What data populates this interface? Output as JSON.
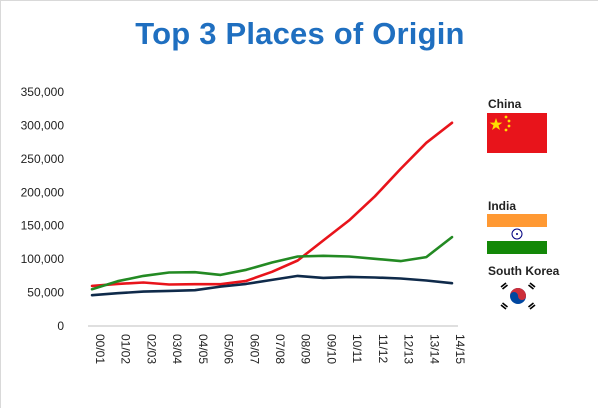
{
  "colors": {
    "title": "#1f6fc0",
    "china": "#e8141b",
    "india": "#238a23",
    "south_korea": "#0f2a4a"
  },
  "legend": {
    "china": {
      "label": "China",
      "flag_icon": "china-flag-icon"
    },
    "india": {
      "label": "India",
      "flag_icon": "india-flag-icon"
    },
    "south_korea": {
      "label": "South Korea",
      "flag_icon": "south-korea-flag-icon"
    }
  },
  "chart_data": {
    "type": "line",
    "title": "Top 3 Places of Origin",
    "xlabel": "",
    "ylabel": "",
    "categories": [
      "00/01",
      "01/02",
      "02/03",
      "03/04",
      "04/05",
      "05/06",
      "06/07",
      "07/08",
      "08/09",
      "09/10",
      "10/11",
      "11/12",
      "12/13",
      "13/14",
      "14/15"
    ],
    "yticks": [
      "0",
      "50,000",
      "100,000",
      "150,000",
      "200,000",
      "250,000",
      "300,000",
      "350,000"
    ],
    "ylim": [
      0,
      350000
    ],
    "grid": false,
    "legend_position": "right",
    "series": [
      {
        "name": "China",
        "color": "#e8141b",
        "values": [
          60000,
          63000,
          65000,
          62000,
          62500,
          62500,
          67500,
          81000,
          98000,
          128000,
          158000,
          194000,
          235000,
          274000,
          304000
        ]
      },
      {
        "name": "India",
        "color": "#238a23",
        "values": [
          55000,
          67000,
          75000,
          80000,
          80500,
          76500,
          84000,
          95000,
          104000,
          105000,
          104000,
          100500,
          97000,
          103000,
          133000
        ]
      },
      {
        "name": "South Korea",
        "color": "#0f2a4a",
        "values": [
          46000,
          49000,
          51500,
          52500,
          53500,
          59000,
          63000,
          69000,
          75000,
          72000,
          73500,
          72500,
          71000,
          68000,
          64000
        ]
      }
    ]
  }
}
